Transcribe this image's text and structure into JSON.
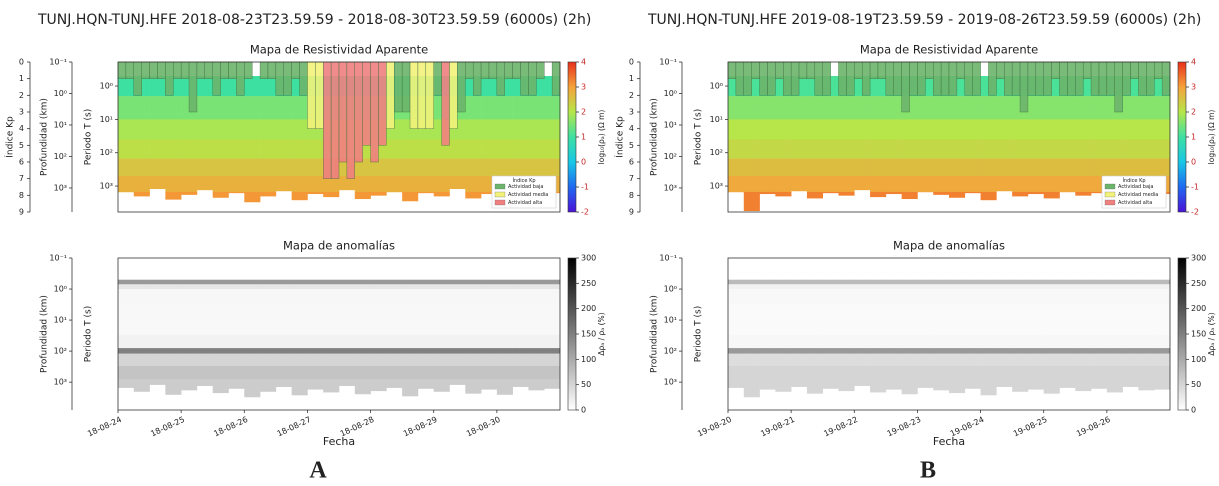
{
  "chart_data": [
    {
      "type": "heatmap",
      "panel_label": "A",
      "suptitle": "TUNJ.HQN-TUNJ.HFE 2018-08-23T23.59.59 - 2018-08-30T23.59.59 (6000s) (2h)",
      "title": "Mapa de Resistividad Aparente",
      "kp_label": "Índice Kp",
      "kp_ylim": [
        0,
        9
      ],
      "kp_ticks": [
        0,
        1,
        2,
        3,
        4,
        5,
        6,
        7,
        8,
        9
      ],
      "depth_label": "Profundidad (km)",
      "depth_ylim": [
        0.1,
        5800
      ],
      "depth_ticks": [
        {
          "value": 0.1,
          "label": "10⁻¹"
        },
        {
          "value": 1,
          "label": "10⁰"
        },
        {
          "value": 10,
          "label": "10¹"
        },
        {
          "value": 100,
          "label": "10²"
        },
        {
          "value": 1000,
          "label": "10³"
        }
      ],
      "period_label": "Periodo T (s)",
      "period_ylim": [
        0.19,
        6000
      ],
      "period_ticks": [
        {
          "value": 1,
          "label": "10⁰"
        },
        {
          "value": 10,
          "label": "10¹"
        },
        {
          "value": 100,
          "label": "10²"
        },
        {
          "value": 1000,
          "label": "10³"
        }
      ],
      "kp": [
        1,
        1,
        2,
        1,
        1,
        1,
        2,
        1,
        1,
        3,
        1,
        1,
        2,
        1,
        1,
        2,
        1,
        0,
        1,
        1,
        2,
        2,
        1,
        2,
        4,
        4,
        7,
        7,
        6,
        7,
        6,
        5,
        6,
        5,
        4,
        3,
        3,
        4,
        4,
        4,
        2,
        5,
        4,
        3,
        1,
        2,
        1,
        1,
        2,
        1,
        1,
        2,
        2,
        1,
        0,
        2
      ],
      "kp_activity": [
        0,
        0,
        0,
        0,
        0,
        0,
        0,
        0,
        0,
        0,
        0,
        0,
        0,
        0,
        0,
        0,
        0,
        0,
        0,
        0,
        0,
        0,
        0,
        0,
        1,
        1,
        2,
        2,
        2,
        2,
        2,
        2,
        2,
        2,
        1,
        0,
        0,
        1,
        1,
        1,
        0,
        2,
        1,
        0,
        0,
        0,
        0,
        0,
        0,
        0,
        0,
        0,
        0,
        0,
        0,
        0
      ],
      "period_edges": [
        0.5,
        2,
        10,
        40,
        150,
        500,
        1500,
        6000
      ],
      "values": [
        1.0,
        1.5,
        1.9,
        2.1,
        2.5,
        2.8,
        3.1
      ],
      "column_bottoms": [
        1500,
        2000,
        1200,
        2500,
        1800,
        1300,
        2200,
        1600,
        3000,
        2000,
        1400,
        2600,
        1700,
        2100,
        1300,
        2400,
        1900,
        1500,
        2800,
        1600,
        2000,
        1200,
        2300,
        1700,
        2500,
        1400,
        1800,
        1600
      ],
      "colorbar_label": "log₁₀(ρₐ) (Ω m)",
      "clim": [
        -2,
        4
      ],
      "colorbar_ticks": [
        4,
        3,
        2,
        1,
        0,
        -1,
        -2
      ],
      "colormap": [
        "#4a12d8",
        "#1f6af0",
        "#18c8e6",
        "#3ee0a2",
        "#b6e64a",
        "#f5a23a",
        "#e8301c"
      ],
      "legend_title": "Índice Kp",
      "legend_loc": "lower right",
      "legend": [
        {
          "name": "Actividad baja",
          "color": "#6cb46c"
        },
        {
          "name": "Actividad media",
          "color": "#f2f27a"
        },
        {
          "name": "Actividad alta",
          "color": "#f08080"
        }
      ]
    },
    {
      "type": "heatmap",
      "title": "Mapa de anomalías",
      "depth_label": "Profundidad (km)",
      "depth_ylim": [
        0.1,
        7900
      ],
      "depth_ticks": [
        {
          "value": 0.1,
          "label": "10⁻¹"
        },
        {
          "value": 1,
          "label": "10⁰"
        },
        {
          "value": 10,
          "label": "10¹"
        },
        {
          "value": 100,
          "label": "10²"
        },
        {
          "value": 1000,
          "label": "10³"
        }
      ],
      "period_label": "Periodo T (s)",
      "period_ylim": [
        0.1,
        7900
      ],
      "period_edges": [
        0.5,
        0.7,
        1,
        3,
        30,
        80,
        120,
        300,
        800,
        3000
      ],
      "values": [
        120,
        30,
        10,
        8,
        15,
        150,
        50,
        70,
        60
      ],
      "column_bottoms": [
        1500,
        2000,
        1200,
        2500,
        1800,
        1300,
        2200,
        1600,
        3000,
        2000,
        1400,
        2600,
        1700,
        2100,
        1300,
        2400,
        1900,
        1500,
        2800,
        1600,
        2000,
        1200,
        2300,
        1700,
        2500,
        1400,
        1800,
        1600
      ],
      "colorbar_label": "Δρₐ / ρₐ (%)",
      "clim": [
        0,
        300
      ],
      "colorbar_ticks": [
        300,
        250,
        200,
        150,
        100,
        50,
        0
      ],
      "colormap": [
        "#ffffff",
        "#000000"
      ],
      "xticks": [
        "18-08-24",
        "18-08-25",
        "18-08-26",
        "18-08-27",
        "18-08-28",
        "18-08-29",
        "18-08-30"
      ],
      "xlabel": "Fecha"
    },
    {
      "type": "heatmap",
      "panel_label": "B",
      "suptitle": "TUNJ.HQN-TUNJ.HFE 2019-08-19T23.59.59 - 2019-08-26T23.59.59 (6000s) (2h)",
      "title": "Mapa de Resistividad Aparente",
      "kp_label": "Índice Kp",
      "kp_ylim": [
        0,
        9
      ],
      "kp_ticks": [
        0,
        1,
        2,
        3,
        4,
        5,
        6,
        7,
        8,
        9
      ],
      "depth_label": "Profundidad (km)",
      "depth_ylim": [
        0.1,
        5800
      ],
      "depth_ticks": [
        {
          "value": 0.1,
          "label": "10⁻¹"
        },
        {
          "value": 1,
          "label": "10⁰"
        },
        {
          "value": 10,
          "label": "10¹"
        },
        {
          "value": 100,
          "label": "10²"
        },
        {
          "value": 1000,
          "label": "10³"
        }
      ],
      "period_label": "Periodo T (s)",
      "period_ylim": [
        0.19,
        6000
      ],
      "period_ticks": [
        {
          "value": 1,
          "label": "10⁰"
        },
        {
          "value": 10,
          "label": "10¹"
        },
        {
          "value": 100,
          "label": "10²"
        },
        {
          "value": 1000,
          "label": "10³"
        }
      ],
      "kp": [
        1,
        2,
        2,
        1,
        2,
        2,
        1,
        2,
        2,
        1,
        1,
        2,
        2,
        0,
        2,
        2,
        1,
        2,
        1,
        1,
        2,
        2,
        3,
        2,
        2,
        1,
        2,
        2,
        2,
        1,
        2,
        2,
        0,
        2,
        1,
        2,
        2,
        3,
        2,
        2,
        2,
        1,
        2,
        2,
        2,
        1,
        2,
        2,
        2,
        3,
        2,
        1,
        2,
        2,
        1,
        2
      ],
      "kp_activity": [
        0,
        0,
        0,
        0,
        0,
        0,
        0,
        0,
        0,
        0,
        0,
        0,
        0,
        0,
        0,
        0,
        0,
        0,
        0,
        0,
        0,
        0,
        0,
        0,
        0,
        0,
        0,
        0,
        0,
        0,
        0,
        0,
        0,
        0,
        0,
        0,
        0,
        0,
        0,
        0,
        0,
        0,
        0,
        0,
        0,
        0,
        0,
        0,
        0,
        0,
        0,
        0,
        0,
        0,
        0,
        0
      ],
      "period_edges": [
        0.5,
        2,
        10,
        40,
        150,
        500,
        1500,
        6000
      ],
      "values": [
        1.1,
        1.6,
        2.0,
        2.2,
        2.6,
        2.9,
        3.3
      ],
      "column_bottoms": [
        1500,
        5500,
        1700,
        2000,
        1400,
        2300,
        1600,
        1900,
        1300,
        2100,
        1700,
        2400,
        1500,
        1800,
        2200,
        1600,
        2600,
        1400,
        2000,
        1700,
        2300,
        1500,
        1900,
        1600,
        2100,
        1400,
        1800,
        1700
      ],
      "colorbar_label": "log₁₀(ρₐ) (Ω m)",
      "clim": [
        -2,
        4
      ],
      "colorbar_ticks": [
        4,
        3,
        2,
        1,
        0,
        -1,
        -2
      ],
      "colormap": [
        "#4a12d8",
        "#1f6af0",
        "#18c8e6",
        "#3ee0a2",
        "#b6e64a",
        "#f5a23a",
        "#e8301c"
      ],
      "legend_title": "Índice Kp",
      "legend_loc": "lower right",
      "legend": [
        {
          "name": "Actividad baja",
          "color": "#6cb46c"
        },
        {
          "name": "Actividad media",
          "color": "#f2f27a"
        },
        {
          "name": "Actividad alta",
          "color": "#f08080"
        }
      ]
    },
    {
      "type": "heatmap",
      "title": "Mapa de anomalías",
      "depth_label": "Profundidad (km)",
      "depth_ylim": [
        0.1,
        7900
      ],
      "depth_ticks": [
        {
          "value": 0.1,
          "label": "10⁻¹"
        },
        {
          "value": 1,
          "label": "10⁰"
        },
        {
          "value": 10,
          "label": "10¹"
        },
        {
          "value": 100,
          "label": "10²"
        },
        {
          "value": 1000,
          "label": "10³"
        }
      ],
      "period_label": "Periodo T (s)",
      "period_ylim": [
        0.1,
        7900
      ],
      "period_edges": [
        0.5,
        0.7,
        1,
        3,
        30,
        80,
        120,
        300,
        800,
        3000
      ],
      "values": [
        80,
        15,
        8,
        6,
        10,
        120,
        40,
        50,
        50
      ],
      "column_bottoms": [
        1500,
        5500,
        1700,
        2000,
        1400,
        2300,
        1600,
        1900,
        1300,
        2100,
        1700,
        2400,
        1500,
        1800,
        2200,
        1600,
        2600,
        1400,
        2000,
        1700,
        2300,
        1500,
        1900,
        1600,
        2100,
        1400,
        1800,
        1700
      ],
      "colorbar_label": "Δρₐ / ρₐ (%)",
      "clim": [
        0,
        300
      ],
      "colorbar_ticks": [
        300,
        250,
        200,
        150,
        100,
        50,
        0
      ],
      "colormap": [
        "#ffffff",
        "#000000"
      ],
      "xticks": [
        "19-08-20",
        "19-08-21",
        "19-08-22",
        "19-08-23",
        "19-08-24",
        "19-08-25",
        "19-08-26"
      ],
      "xlabel": "Fecha"
    }
  ]
}
